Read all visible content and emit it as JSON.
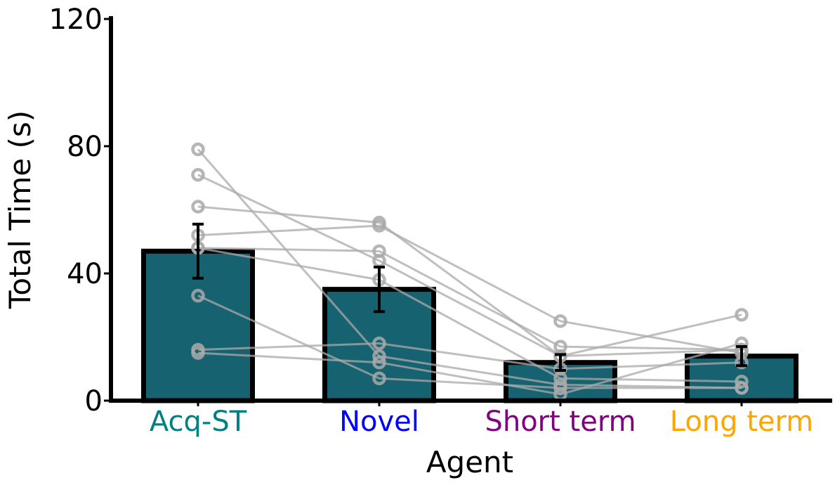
{
  "chart_data": {
    "type": "bar",
    "xlabel": "Agent",
    "ylabel": "Total Time (s)",
    "ylim": [
      0,
      120
    ],
    "yticks": [
      "0",
      "40",
      "80",
      "120"
    ],
    "categories": [
      "Acq-ST",
      "Novel",
      "Short term",
      "Long term"
    ],
    "category_colors": [
      "#008080",
      "#0000ff",
      "#800080",
      "#ffa500"
    ],
    "bar_color": "#176270",
    "bar_edge_color": "#000000",
    "grid": false,
    "values": [
      47,
      35,
      12,
      14
    ],
    "error": [
      8.5,
      7,
      2.5,
      3
    ],
    "individual_color": "#a9a9a9",
    "individuals": [
      [
        79,
        14,
        5,
        4
      ],
      [
        71,
        44,
        14,
        16
      ],
      [
        61,
        56,
        14,
        27
      ],
      [
        52,
        55,
        25,
        15
      ],
      [
        48,
        47,
        17,
        16
      ],
      [
        48,
        38,
        7,
        6
      ],
      [
        33,
        7,
        4,
        4
      ],
      [
        16,
        18,
        10,
        12
      ],
      [
        15,
        12,
        2,
        18
      ]
    ]
  }
}
